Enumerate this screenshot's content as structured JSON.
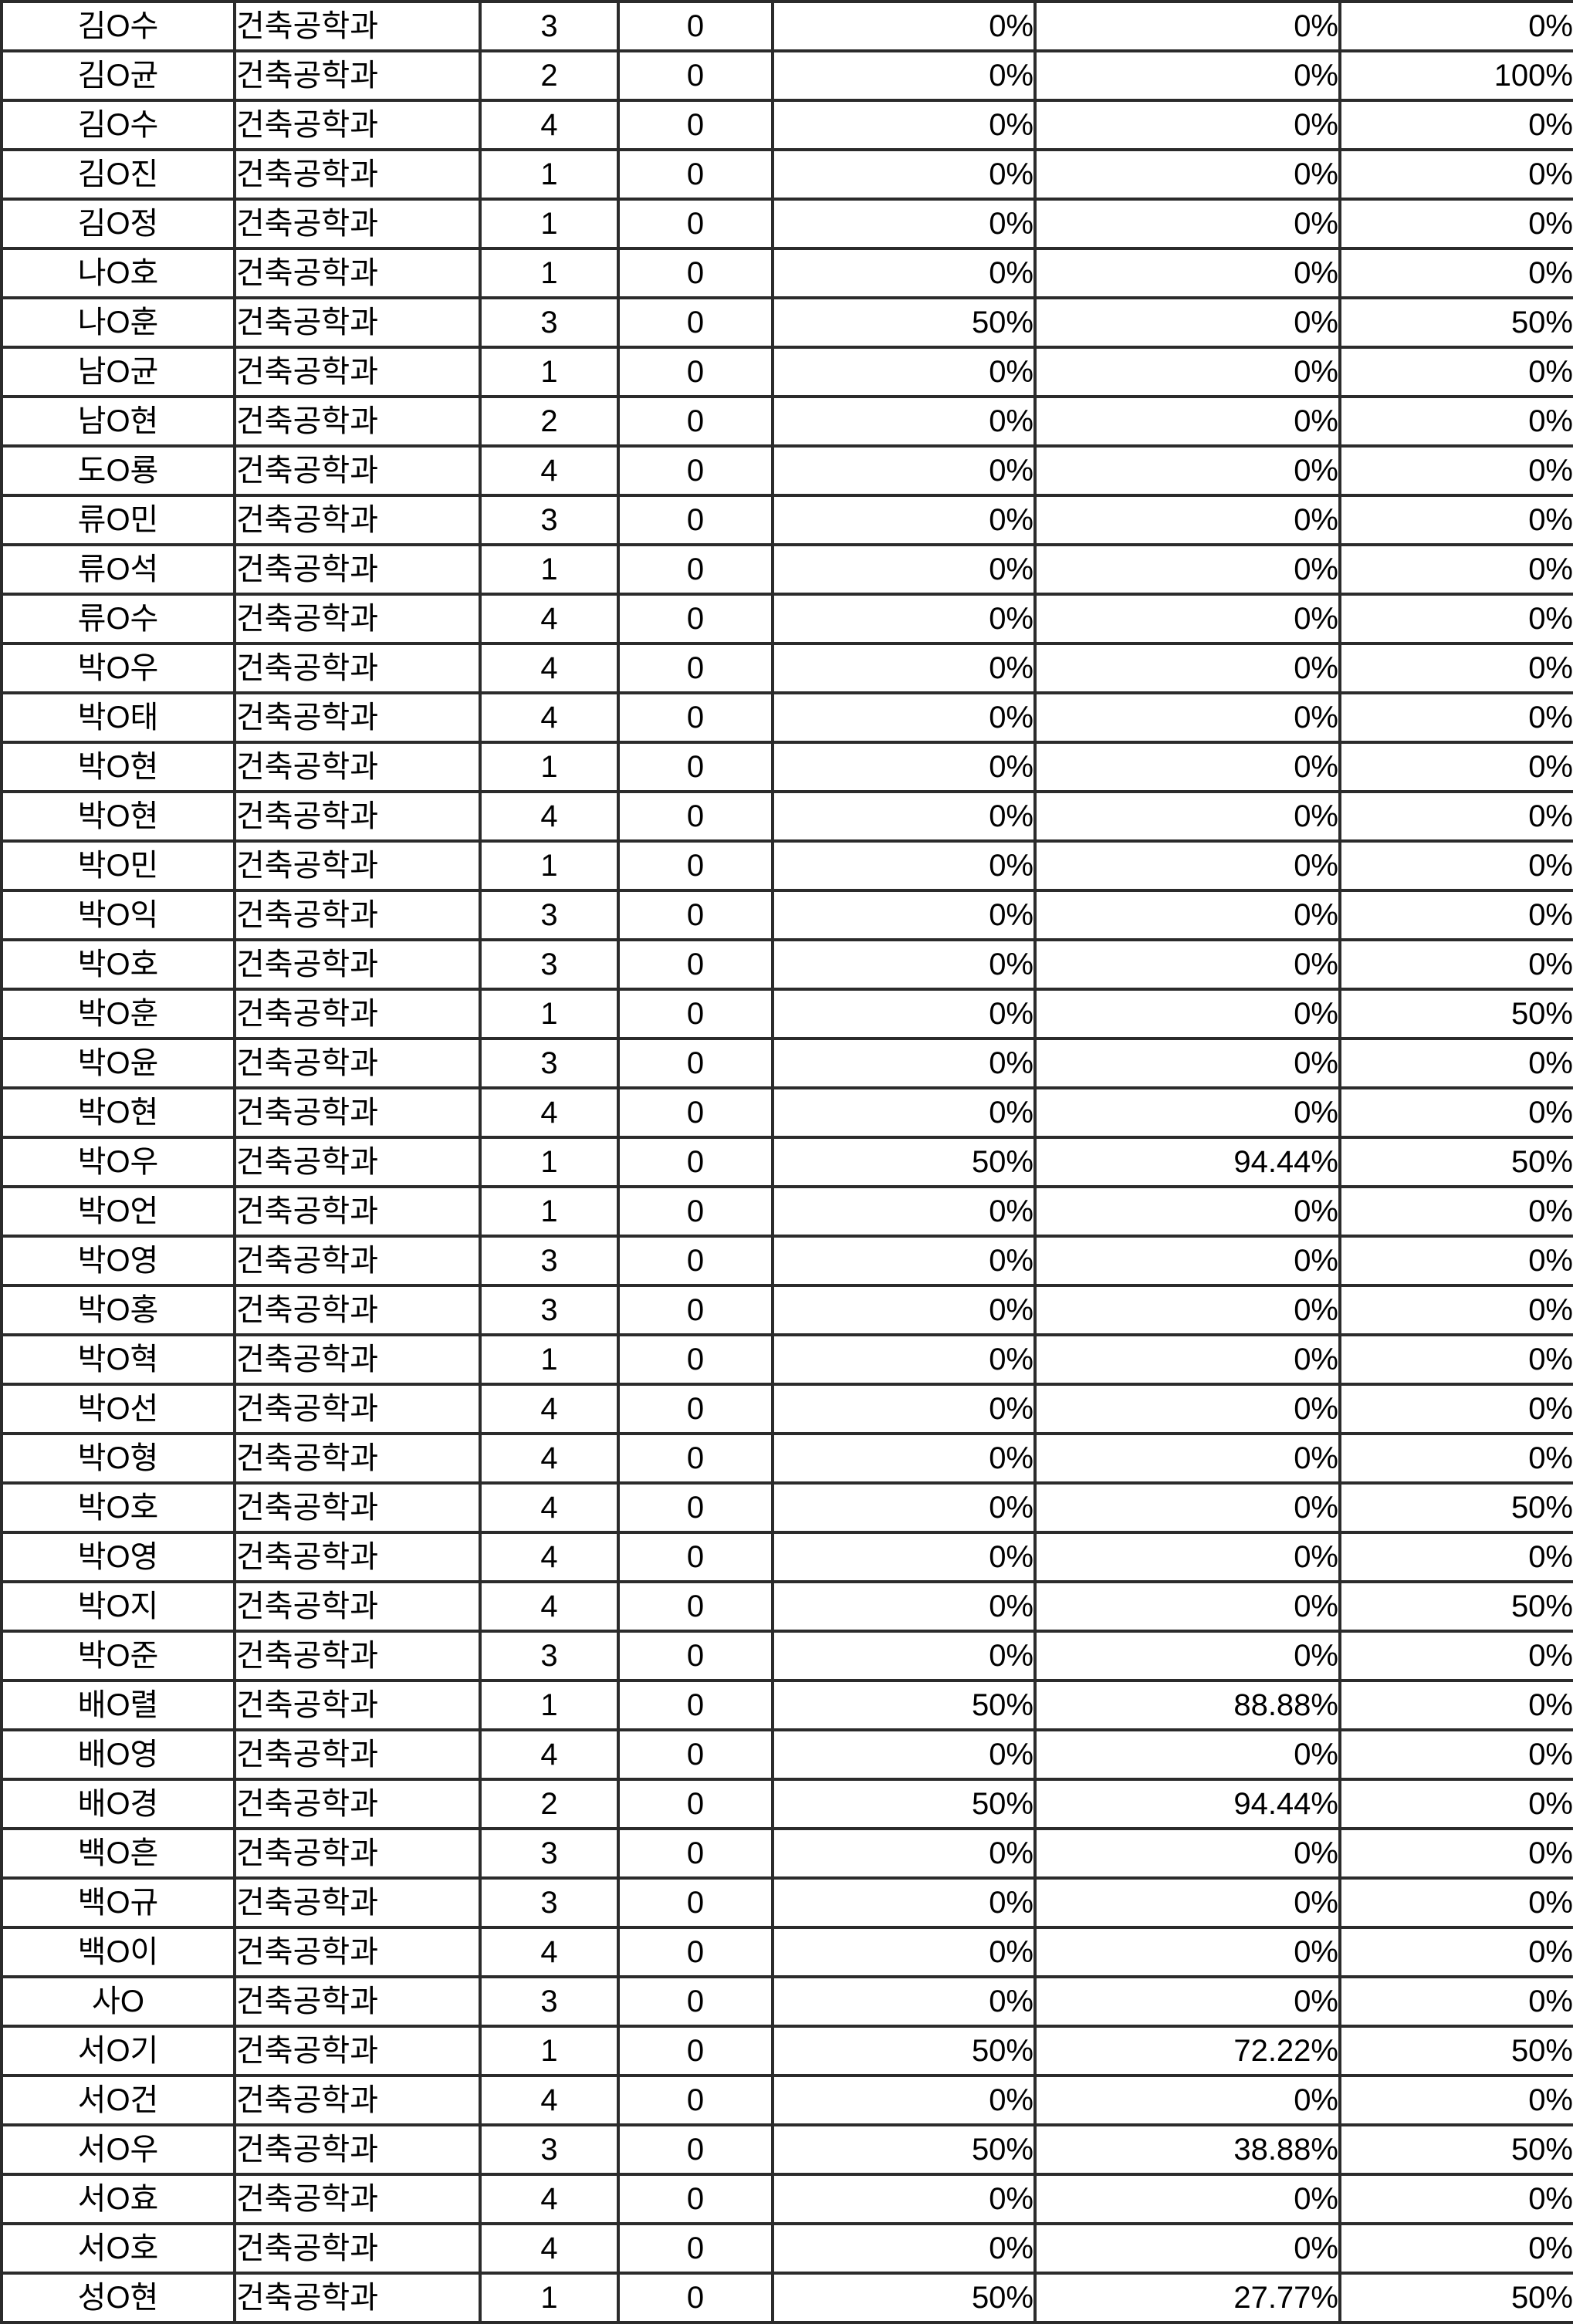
{
  "table": {
    "department_label": "건축공학과",
    "grid_border_color": "#2b2b2b",
    "text_color": "#000000",
    "background_color": "#ffffff"
  },
  "rows": [
    [
      "김O수",
      "건축공학과",
      "3",
      "0",
      "0%",
      "0%",
      "0%"
    ],
    [
      "김O균",
      "건축공학과",
      "2",
      "0",
      "0%",
      "0%",
      "100%"
    ],
    [
      "김O수",
      "건축공학과",
      "4",
      "0",
      "0%",
      "0%",
      "0%"
    ],
    [
      "김O진",
      "건축공학과",
      "1",
      "0",
      "0%",
      "0%",
      "0%"
    ],
    [
      "김O정",
      "건축공학과",
      "1",
      "0",
      "0%",
      "0%",
      "0%"
    ],
    [
      "나O호",
      "건축공학과",
      "1",
      "0",
      "0%",
      "0%",
      "0%"
    ],
    [
      "나O훈",
      "건축공학과",
      "3",
      "0",
      "50%",
      "0%",
      "50%"
    ],
    [
      "남O균",
      "건축공학과",
      "1",
      "0",
      "0%",
      "0%",
      "0%"
    ],
    [
      "남O현",
      "건축공학과",
      "2",
      "0",
      "0%",
      "0%",
      "0%"
    ],
    [
      "도O룡",
      "건축공학과",
      "4",
      "0",
      "0%",
      "0%",
      "0%"
    ],
    [
      "류O민",
      "건축공학과",
      "3",
      "0",
      "0%",
      "0%",
      "0%"
    ],
    [
      "류O석",
      "건축공학과",
      "1",
      "0",
      "0%",
      "0%",
      "0%"
    ],
    [
      "류O수",
      "건축공학과",
      "4",
      "0",
      "0%",
      "0%",
      "0%"
    ],
    [
      "박O우",
      "건축공학과",
      "4",
      "0",
      "0%",
      "0%",
      "0%"
    ],
    [
      "박O태",
      "건축공학과",
      "4",
      "0",
      "0%",
      "0%",
      "0%"
    ],
    [
      "박O현",
      "건축공학과",
      "1",
      "0",
      "0%",
      "0%",
      "0%"
    ],
    [
      "박O현",
      "건축공학과",
      "4",
      "0",
      "0%",
      "0%",
      "0%"
    ],
    [
      "박O민",
      "건축공학과",
      "1",
      "0",
      "0%",
      "0%",
      "0%"
    ],
    [
      "박O익",
      "건축공학과",
      "3",
      "0",
      "0%",
      "0%",
      "0%"
    ],
    [
      "박O호",
      "건축공학과",
      "3",
      "0",
      "0%",
      "0%",
      "0%"
    ],
    [
      "박O훈",
      "건축공학과",
      "1",
      "0",
      "0%",
      "0%",
      "50%"
    ],
    [
      "박O윤",
      "건축공학과",
      "3",
      "0",
      "0%",
      "0%",
      "0%"
    ],
    [
      "박O현",
      "건축공학과",
      "4",
      "0",
      "0%",
      "0%",
      "0%"
    ],
    [
      "박O우",
      "건축공학과",
      "1",
      "0",
      "50%",
      "94.44%",
      "50%"
    ],
    [
      "박O언",
      "건축공학과",
      "1",
      "0",
      "0%",
      "0%",
      "0%"
    ],
    [
      "박O영",
      "건축공학과",
      "3",
      "0",
      "0%",
      "0%",
      "0%"
    ],
    [
      "박O홍",
      "건축공학과",
      "3",
      "0",
      "0%",
      "0%",
      "0%"
    ],
    [
      "박O혁",
      "건축공학과",
      "1",
      "0",
      "0%",
      "0%",
      "0%"
    ],
    [
      "박O선",
      "건축공학과",
      "4",
      "0",
      "0%",
      "0%",
      "0%"
    ],
    [
      "박O형",
      "건축공학과",
      "4",
      "0",
      "0%",
      "0%",
      "0%"
    ],
    [
      "박O호",
      "건축공학과",
      "4",
      "0",
      "0%",
      "0%",
      "50%"
    ],
    [
      "박O영",
      "건축공학과",
      "4",
      "0",
      "0%",
      "0%",
      "0%"
    ],
    [
      "박O지",
      "건축공학과",
      "4",
      "0",
      "0%",
      "0%",
      "50%"
    ],
    [
      "박O준",
      "건축공학과",
      "3",
      "0",
      "0%",
      "0%",
      "0%"
    ],
    [
      "배O렬",
      "건축공학과",
      "1",
      "0",
      "50%",
      "88.88%",
      "0%"
    ],
    [
      "배O영",
      "건축공학과",
      "4",
      "0",
      "0%",
      "0%",
      "0%"
    ],
    [
      "배O경",
      "건축공학과",
      "2",
      "0",
      "50%",
      "94.44%",
      "0%"
    ],
    [
      "백O흔",
      "건축공학과",
      "3",
      "0",
      "0%",
      "0%",
      "0%"
    ],
    [
      "백O규",
      "건축공학과",
      "3",
      "0",
      "0%",
      "0%",
      "0%"
    ],
    [
      "백O이",
      "건축공학과",
      "4",
      "0",
      "0%",
      "0%",
      "0%"
    ],
    [
      "사O",
      "건축공학과",
      "3",
      "0",
      "0%",
      "0%",
      "0%"
    ],
    [
      "서O기",
      "건축공학과",
      "1",
      "0",
      "50%",
      "72.22%",
      "50%"
    ],
    [
      "서O건",
      "건축공학과",
      "4",
      "0",
      "0%",
      "0%",
      "0%"
    ],
    [
      "서O우",
      "건축공학과",
      "3",
      "0",
      "50%",
      "38.88%",
      "50%"
    ],
    [
      "서O효",
      "건축공학과",
      "4",
      "0",
      "0%",
      "0%",
      "0%"
    ],
    [
      "서O호",
      "건축공학과",
      "4",
      "0",
      "0%",
      "0%",
      "0%"
    ],
    [
      "성O현",
      "건축공학과",
      "1",
      "0",
      "50%",
      "27.77%",
      "50%"
    ]
  ]
}
